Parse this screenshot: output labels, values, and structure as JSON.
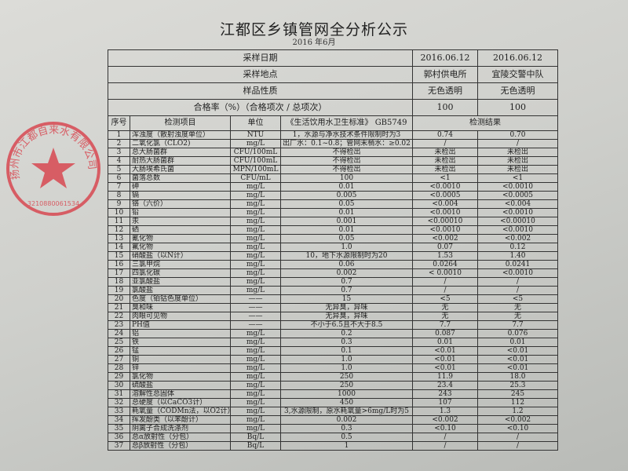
{
  "document": {
    "title": "江都区乡镇管网全分析公示",
    "subtitle": "2016 年6月",
    "meta_rows": [
      {
        "label": "采样日期",
        "values": [
          "2016.06.12",
          "2016.06.12"
        ]
      },
      {
        "label": "采样地点",
        "values": [
          "郭村供电所",
          "宜陵交警中队"
        ]
      },
      {
        "label": "样品性质",
        "values": [
          "无色透明",
          "无色透明"
        ]
      },
      {
        "label": "合格率（%）（合格项次 / 总项次）",
        "values": [
          "100",
          "100"
        ]
      }
    ],
    "headers": {
      "seq": "序号",
      "item": "检测项目",
      "unit": "单位",
      "standard": "《生活饮用水卫生标准》 GB5749",
      "result": "检测结果"
    },
    "rows": [
      [
        "1",
        "浑浊度（散射浊度单位）",
        "NTU",
        "1，水源与净水技术条件限制时为3",
        "0.74",
        "0.70"
      ],
      [
        "2",
        "二氧化氯（CLO2)",
        "mg/L",
        "出厂水：0.1~0.8；管网末梢水：≥0.02",
        "/",
        "/"
      ],
      [
        "3",
        "总大肠菌群",
        "CFU/100mL",
        "不得检出",
        "未检出",
        "未检出"
      ],
      [
        "4",
        "耐热大肠菌群",
        "CFU/100mL",
        "不得检出",
        "未检出",
        "未检出"
      ],
      [
        "5",
        "大肠埃希氏菌",
        "MPN/100mL",
        "不得检出",
        "未检出",
        "未检出"
      ],
      [
        "6",
        "菌落总数",
        "CFU/mL",
        "100",
        "<1",
        "<1"
      ],
      [
        "7",
        "砷",
        "mg/L",
        "0.01",
        "<0.0010",
        "<0.0010"
      ],
      [
        "8",
        "镉",
        "mg/L",
        "0.005",
        "<0.0005",
        "<0.0005"
      ],
      [
        "9",
        "铬（六价）",
        "mg/L",
        "0.05",
        "<0.004",
        "<0.004"
      ],
      [
        "10",
        "铅",
        "mg/L",
        "0.01",
        "<0.0010",
        "<0.0010"
      ],
      [
        "11",
        "汞",
        "mg/L",
        "0.001",
        "<0.00010",
        "<0.00010"
      ],
      [
        "12",
        "硒",
        "mg/L",
        "0.01",
        "<0.0010",
        "<0.0010"
      ],
      [
        "13",
        "氰化物",
        "mg/L",
        "0.05",
        "<0.002",
        "<0.002"
      ],
      [
        "14",
        "氟化物",
        "mg/L",
        "1.0",
        "0.07",
        "0.12"
      ],
      [
        "15",
        "硝酸盐（以N计）",
        "mg/L",
        "10，地下水源限制时为20",
        "1.53",
        "1.40"
      ],
      [
        "16",
        "三氯甲烷",
        "mg/L",
        "0.06",
        "0.0264",
        "0.0241"
      ],
      [
        "17",
        "四氯化碳",
        "mg/L",
        "0.002",
        "< 0.0010",
        "<0.0010"
      ],
      [
        "18",
        "亚氯酸盐",
        "mg/L",
        "0.7",
        "/",
        "/"
      ],
      [
        "19",
        "氯酸盐",
        "mg/L",
        "0.7",
        "/",
        "/"
      ],
      [
        "20",
        "色度（铂钴色度单位）",
        "——",
        "15",
        "<5",
        "<5"
      ],
      [
        "21",
        "臭和味",
        "——",
        "无异臭，异味",
        "无",
        "无"
      ],
      [
        "22",
        "肉眼可见物",
        "——",
        "无异臭，异味",
        "无",
        "无"
      ],
      [
        "23",
        "PH值",
        "——",
        "不小于6.5且不大于8.5",
        "7.7",
        "7.7"
      ],
      [
        "24",
        "铝",
        "mg/L",
        "0.2",
        "0.087",
        "0.076"
      ],
      [
        "25",
        "铁",
        "mg/L",
        "0.3",
        "0.01",
        "0.01"
      ],
      [
        "26",
        "锰",
        "mg/L",
        "0.1",
        "<0.01",
        "<0.01"
      ],
      [
        "27",
        "铜",
        "mg/L",
        "1.0",
        "<0.01",
        "<0.01"
      ],
      [
        "28",
        "锌",
        "mg/L",
        "1.0",
        "<0.01",
        "<0.01"
      ],
      [
        "29",
        "氯化物",
        "mg/L",
        "250",
        "11.9",
        "18.0"
      ],
      [
        "30",
        "硫酸盐",
        "mg/L",
        "250",
        "23.4",
        "25.3"
      ],
      [
        "31",
        "溶解性总固体",
        "mg/L",
        "1000",
        "243",
        "245"
      ],
      [
        "32",
        "总硬度（以CaCO3计）",
        "mg/L",
        "450",
        "107",
        "112"
      ],
      [
        "33",
        "耗氧量（CODMn法，以O2计）",
        "mg/L",
        "3,水源限制，原水耗氧量>6mg/L时为5",
        "1.3",
        "1.2"
      ],
      [
        "34",
        "挥发酚类（以苯酚计）",
        "mg/L",
        "0.002",
        "<0.002",
        "<0.002"
      ],
      [
        "35",
        "阴离子合成洗涤剂",
        "mg/L",
        "0.3",
        "<0.10",
        "<0.10"
      ],
      [
        "36",
        "总α放射性（分包）",
        "Bq/L",
        "0.5",
        "/",
        "/"
      ],
      [
        "37",
        "总β放射性（分包）",
        "Bq/L",
        "1",
        "/",
        "/"
      ]
    ],
    "stamp": {
      "text": "扬州市江都自来水有限公司",
      "number": "3210880061534",
      "color": "#d8404a"
    }
  }
}
